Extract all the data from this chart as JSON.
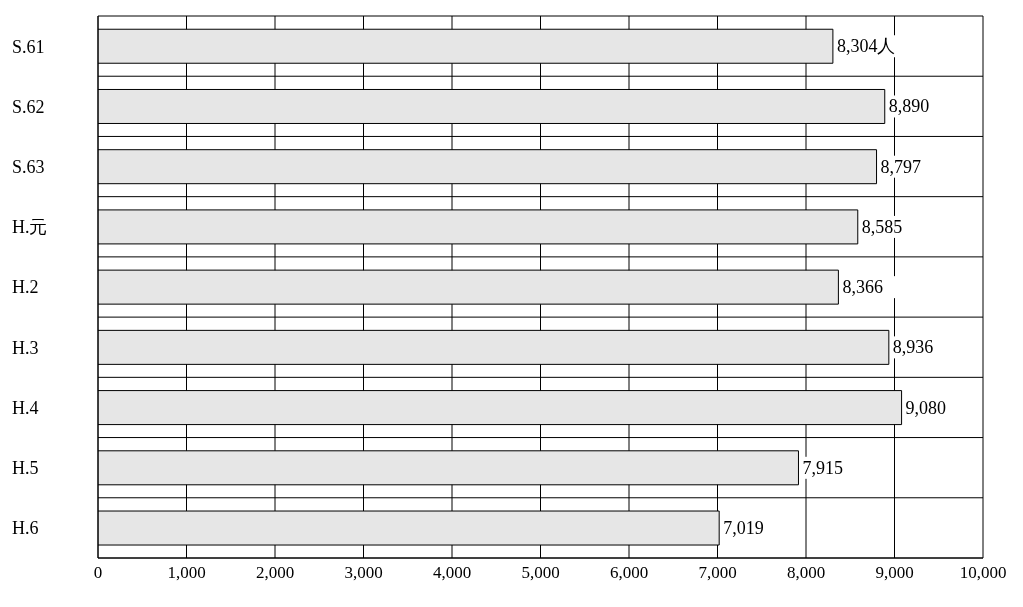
{
  "chart_data": {
    "type": "bar",
    "orientation": "horizontal",
    "categories": [
      "S.61",
      "S.62",
      "S.63",
      "H.元",
      "H.2",
      "H.3",
      "H.4",
      "H.5",
      "H.6"
    ],
    "values": [
      8304,
      8890,
      8797,
      8585,
      8366,
      8936,
      9080,
      7915,
      7019
    ],
    "value_labels": [
      "8,304人",
      "8,890",
      "8,797",
      "8,585",
      "8,366",
      "8,936",
      "9,080",
      "7,915",
      "7,019"
    ],
    "color": "#e6e6e6",
    "xlim": [
      0,
      10000
    ],
    "xticks": [
      0,
      {
        "value": 1000,
        "label": "1,000"
      },
      {
        "value": 2000,
        "label": "2,000"
      },
      {
        "value": 3000,
        "label": "3,000"
      },
      {
        "value": 4000,
        "label": "4,000"
      },
      {
        "value": 5000,
        "label": "5,000"
      },
      {
        "value": 6000,
        "label": "6,000"
      },
      {
        "value": 7000,
        "label": "7,000"
      },
      {
        "value": 8000,
        "label": "8,000"
      },
      {
        "value": 9000,
        "label": "9,000"
      },
      {
        "value": 10000,
        "label": "10,000"
      }
    ],
    "grid": true
  }
}
